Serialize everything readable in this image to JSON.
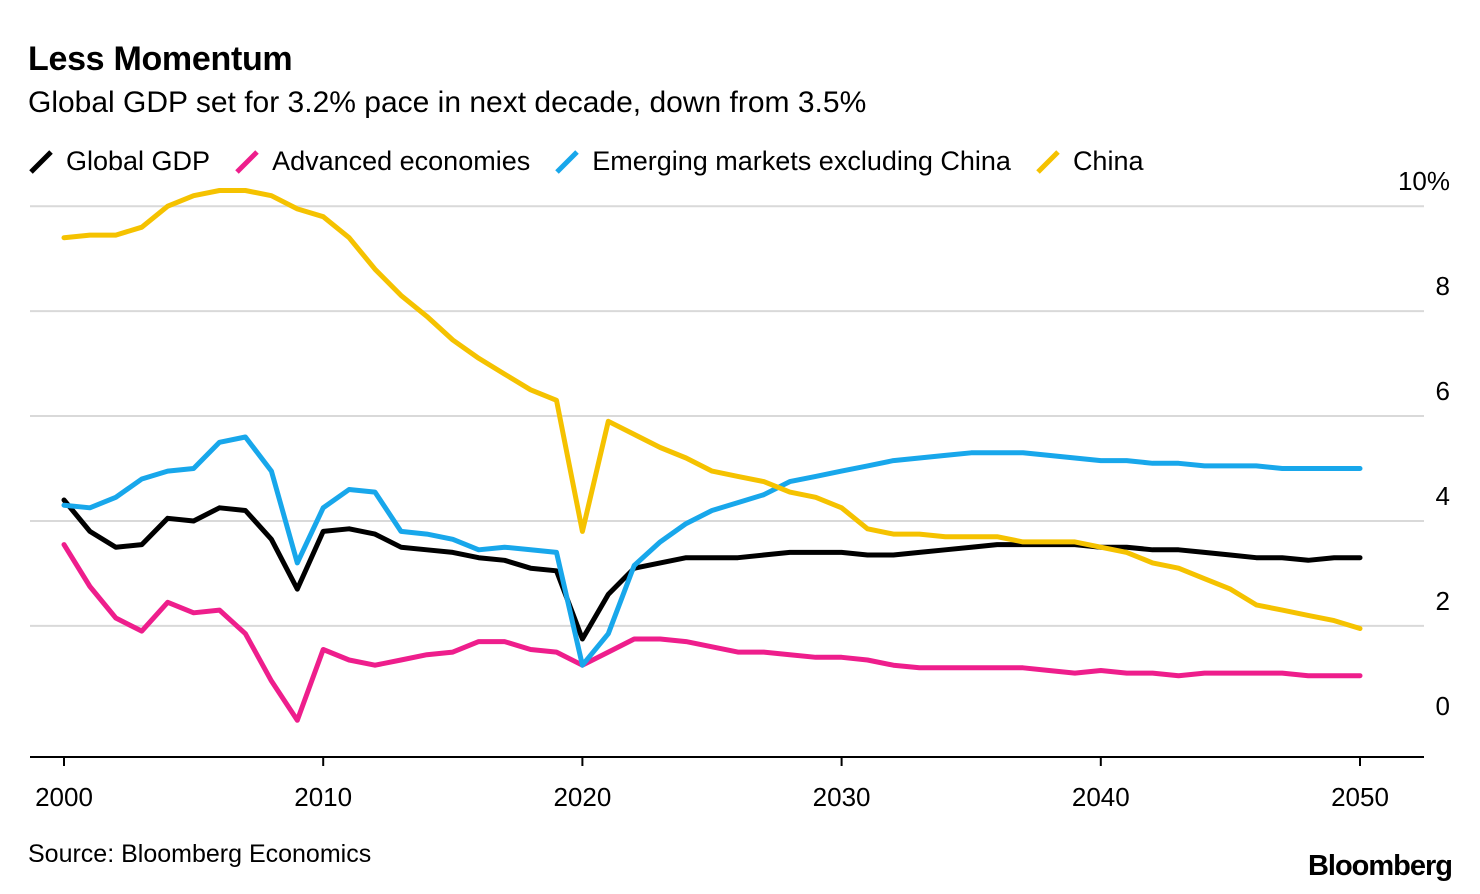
{
  "header": {
    "title": "Less Momentum",
    "subtitle": "Global GDP set for 3.2% pace in next decade, down from 3.5%"
  },
  "footer": {
    "source": "Source: Bloomberg Economics",
    "brand": "Bloomberg"
  },
  "chart_data": {
    "type": "line",
    "title": "Less Momentum",
    "subtitle": "Global GDP set for 3.2% pace in next decade, down from 3.5%",
    "xlabel": "",
    "ylabel": "",
    "xlim": [
      1999,
      2052
    ],
    "ylim": [
      -0.5,
      10.5
    ],
    "grid": true,
    "legend_position": "top",
    "x_ticks": [
      2000,
      2010,
      2020,
      2030,
      2040,
      2050
    ],
    "x_tick_labels": [
      "2000",
      "2010",
      "2020",
      "2030",
      "2040",
      "2050"
    ],
    "y_ticks": [
      0,
      2,
      4,
      6,
      8,
      10
    ],
    "y_tick_labels": [
      "0",
      "2",
      "4",
      "6",
      "8",
      "10%"
    ],
    "x": [
      2000,
      2001,
      2002,
      2003,
      2004,
      2005,
      2006,
      2007,
      2008,
      2009,
      2010,
      2011,
      2012,
      2013,
      2014,
      2015,
      2016,
      2017,
      2018,
      2019,
      2020,
      2021,
      2022,
      2023,
      2024,
      2025,
      2026,
      2027,
      2028,
      2029,
      2030,
      2031,
      2032,
      2033,
      2034,
      2035,
      2036,
      2037,
      2038,
      2039,
      2040,
      2041,
      2042,
      2043,
      2044,
      2045,
      2046,
      2047,
      2048,
      2049,
      2050
    ],
    "series": [
      {
        "name": "Global GDP",
        "color": "#000000",
        "values": [
          4.4,
          3.8,
          3.5,
          3.55,
          4.05,
          4.0,
          4.25,
          4.2,
          3.65,
          2.7,
          3.8,
          3.85,
          3.75,
          3.5,
          3.45,
          3.4,
          3.3,
          3.25,
          3.1,
          3.05,
          1.75,
          2.6,
          3.1,
          3.2,
          3.3,
          3.3,
          3.3,
          3.35,
          3.4,
          3.4,
          3.4,
          3.35,
          3.35,
          3.4,
          3.45,
          3.5,
          3.55,
          3.55,
          3.55,
          3.55,
          3.5,
          3.5,
          3.45,
          3.45,
          3.4,
          3.35,
          3.3,
          3.3,
          3.25,
          3.3,
          3.3
        ]
      },
      {
        "name": "Advanced economies",
        "color": "#ee1e8c",
        "values": [
          3.55,
          2.75,
          2.15,
          1.9,
          2.45,
          2.25,
          2.3,
          1.85,
          0.95,
          0.2,
          1.55,
          1.35,
          1.25,
          1.35,
          1.45,
          1.5,
          1.7,
          1.7,
          1.55,
          1.5,
          1.25,
          1.5,
          1.75,
          1.75,
          1.7,
          1.6,
          1.5,
          1.5,
          1.45,
          1.4,
          1.4,
          1.35,
          1.25,
          1.2,
          1.2,
          1.2,
          1.2,
          1.2,
          1.15,
          1.1,
          1.15,
          1.1,
          1.1,
          1.05,
          1.1,
          1.1,
          1.1,
          1.1,
          1.05,
          1.05,
          1.05
        ]
      },
      {
        "name": "Emerging markets excluding China",
        "color": "#18a7eb",
        "values": [
          4.3,
          4.25,
          4.45,
          4.8,
          4.95,
          5.0,
          5.5,
          5.6,
          4.95,
          3.2,
          4.25,
          4.6,
          4.55,
          3.8,
          3.75,
          3.65,
          3.45,
          3.5,
          3.45,
          3.4,
          1.25,
          1.85,
          3.15,
          3.6,
          3.95,
          4.2,
          4.35,
          4.5,
          4.75,
          4.85,
          4.95,
          5.05,
          5.15,
          5.2,
          5.25,
          5.3,
          5.3,
          5.3,
          5.25,
          5.2,
          5.15,
          5.15,
          5.1,
          5.1,
          5.05,
          5.05,
          5.05,
          5.0,
          5.0,
          5.0,
          5.0
        ]
      },
      {
        "name": "China",
        "color": "#f5c200",
        "values": [
          9.4,
          9.45,
          9.45,
          9.6,
          10.0,
          10.2,
          10.3,
          10.3,
          10.2,
          9.95,
          9.8,
          9.4,
          8.8,
          8.3,
          7.9,
          7.45,
          7.1,
          6.8,
          6.5,
          6.3,
          3.8,
          5.9,
          5.65,
          5.4,
          5.2,
          4.95,
          4.85,
          4.75,
          4.55,
          4.45,
          4.25,
          3.85,
          3.75,
          3.75,
          3.7,
          3.7,
          3.7,
          3.6,
          3.6,
          3.6,
          3.5,
          3.4,
          3.2,
          3.1,
          2.9,
          2.7,
          2.4,
          2.3,
          2.2,
          2.1,
          1.95
        ]
      }
    ]
  }
}
